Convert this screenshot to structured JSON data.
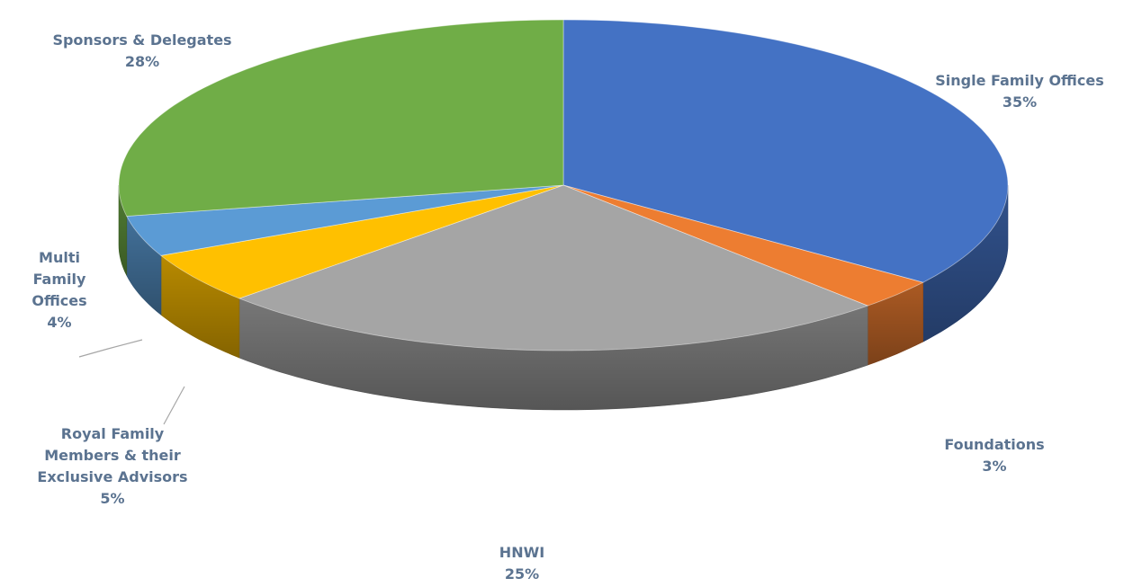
{
  "chart_data": {
    "type": "pie",
    "style": "3d-exploded-perspective",
    "slices": [
      {
        "name": "Single Family Offices",
        "label_lines": [
          "Single Family Offices"
        ],
        "value": 35,
        "value_label": "35%",
        "color": "#4472c4"
      },
      {
        "name": "Foundations",
        "label_lines": [
          "Foundations"
        ],
        "value": 3,
        "value_label": "3%",
        "color": "#ed7d31"
      },
      {
        "name": "HNWI",
        "label_lines": [
          "HNWI"
        ],
        "value": 25,
        "value_label": "25%",
        "color": "#a5a5a5"
      },
      {
        "name": "Royal Family Members & their Exclusive Advisors",
        "label_lines": [
          "Royal Family",
          "Members & their",
          "Exclusive Advisors"
        ],
        "value": 5,
        "value_label": "5%",
        "color": "#ffc000"
      },
      {
        "name": "Multi Family Offices",
        "label_lines": [
          "Multi",
          "Family",
          "Offices"
        ],
        "value": 4,
        "value_label": "4%",
        "color": "#5b9bd5"
      },
      {
        "name": "Sponsors & Delegates",
        "label_lines": [
          "Sponsors & Delegates"
        ],
        "value": 28,
        "value_label": "28%",
        "color": "#70ad47"
      }
    ],
    "label_color": "#5b7390",
    "legend": "none"
  }
}
